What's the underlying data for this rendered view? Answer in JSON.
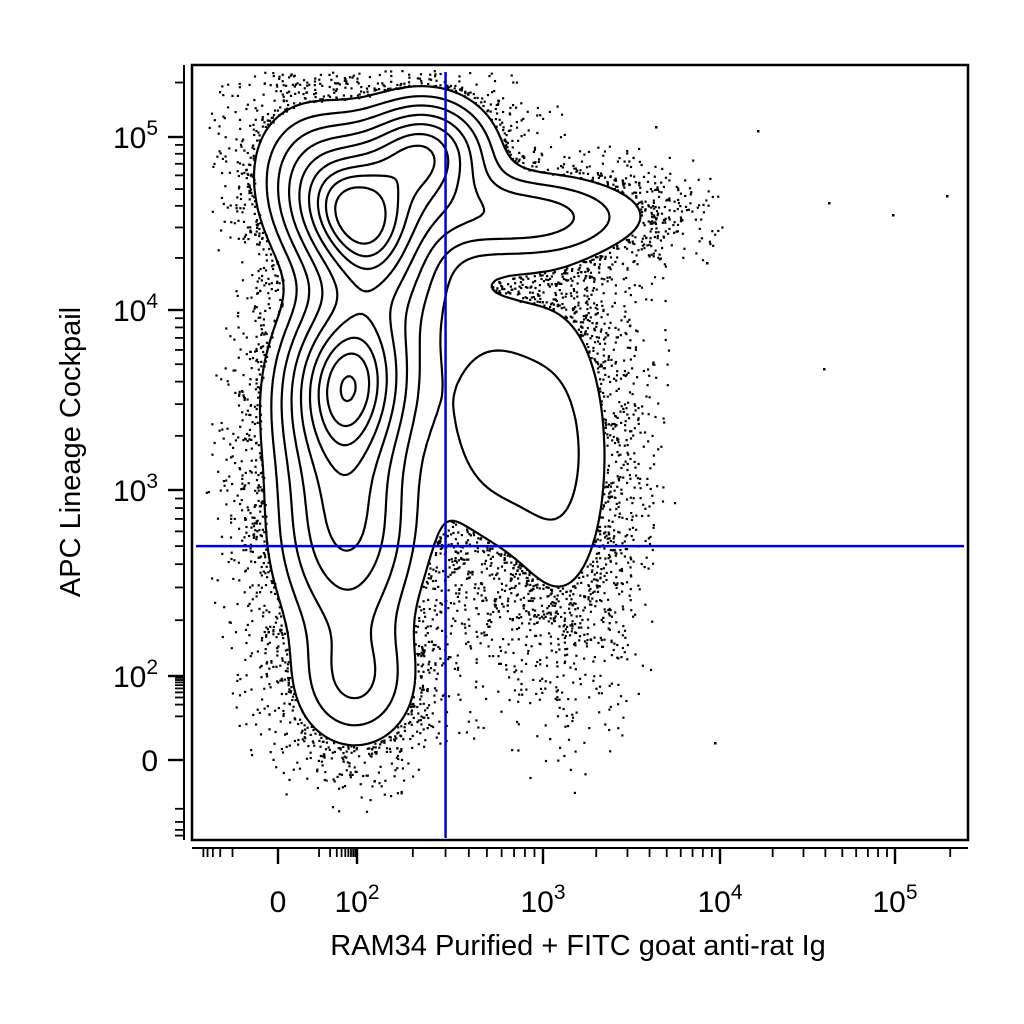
{
  "chart_data": {
    "type": "scatter",
    "subtype": "flow-cytometry-contour-with-dots",
    "title": "",
    "xlabel": "RAM34 Purified + FITC goat anti-rat Ig",
    "ylabel": "APC Lineage Cockpail",
    "x_scale": "biexponential",
    "y_scale": "biexponential",
    "xlim": [
      -60,
      250000
    ],
    "ylim": [
      -50,
      250000
    ],
    "x_ticks": [
      {
        "value": 0,
        "base": "0",
        "exp": ""
      },
      {
        "value": 100,
        "base": "10",
        "exp": "2"
      },
      {
        "value": 1000,
        "base": "10",
        "exp": "3"
      },
      {
        "value": 10000,
        "base": "10",
        "exp": "4"
      },
      {
        "value": 100000,
        "base": "10",
        "exp": "5"
      }
    ],
    "y_ticks": [
      {
        "value": 0,
        "base": "0",
        "exp": ""
      },
      {
        "value": 100,
        "base": "10",
        "exp": "2"
      },
      {
        "value": 1000,
        "base": "10",
        "exp": "3"
      },
      {
        "value": 10000,
        "base": "10",
        "exp": "4"
      },
      {
        "value": 100000,
        "base": "10",
        "exp": "5"
      }
    ],
    "quadrant_gates": {
      "x": 300,
      "y": 500,
      "color": "#0000dd"
    },
    "populations": [
      {
        "x": 80,
        "y": 35000
      },
      {
        "x": 60,
        "y": 4000
      },
      {
        "x": 700,
        "y": 35000
      },
      {
        "x": 500,
        "y": 2500
      },
      {
        "x": 1300,
        "y": 1500
      }
    ],
    "grid": false,
    "legend": "none"
  }
}
